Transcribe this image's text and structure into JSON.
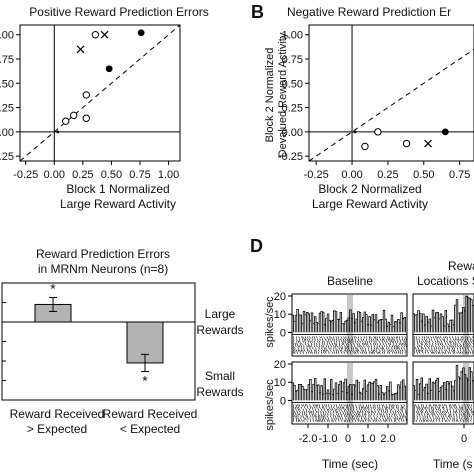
{
  "chart_data": [
    {
      "panel": "A",
      "type": "scatter",
      "title": "Positive Reward Prediction Errors",
      "xlabel": "Block 1 Normalized",
      "xlabel2": "Large Reward Activity",
      "xlim": [
        -0.3,
        1.1
      ],
      "ylim": [
        -0.3,
        1.1
      ],
      "xticks": [
        "-0.25",
        "0.00",
        "0.25",
        "0.50",
        "0.75",
        "1.00"
      ],
      "yticks": [
        "-0.25",
        "0.00",
        "0.25",
        "0.50",
        "0.75",
        "1.00"
      ],
      "diagonal": true,
      "points": [
        {
          "x": 0.03,
          "y": 0.0,
          "m": "dot"
        },
        {
          "x": 0.1,
          "y": 0.11,
          "m": "open"
        },
        {
          "x": 0.17,
          "y": 0.17,
          "m": "open"
        },
        {
          "x": 0.28,
          "y": 0.14,
          "m": "open"
        },
        {
          "x": 0.28,
          "y": 0.38,
          "m": "open"
        },
        {
          "x": 0.23,
          "y": 0.85,
          "m": "x"
        },
        {
          "x": 0.48,
          "y": 0.65,
          "m": "filled"
        },
        {
          "x": 0.36,
          "y": 1.0,
          "m": "open"
        },
        {
          "x": 0.44,
          "y": 1.0,
          "m": "x"
        },
        {
          "x": 0.76,
          "y": 1.02,
          "m": "filled"
        }
      ]
    },
    {
      "panel": "B",
      "type": "scatter",
      "title": "Negative Reward Prediction Er",
      "xlabel": "Block 2 Normalized",
      "xlabel2": "Large Reward Activity",
      "ylabel": "Block 2 Normalized",
      "ylabel2": "Devalued Reward Activity",
      "xlim": [
        -0.3,
        0.85
      ],
      "ylim": [
        -0.3,
        1.1
      ],
      "xticks": [
        "-0.25",
        "0.00",
        "0.25",
        "0.50",
        "0.75"
      ],
      "yticks": [
        "-0.25",
        "0.00",
        "0.25",
        "0.50",
        "0.75",
        "1.00"
      ],
      "diagonal": true,
      "points": [
        {
          "x": 0.02,
          "y": 0.0,
          "m": "dot"
        },
        {
          "x": 0.09,
          "y": -0.15,
          "m": "open"
        },
        {
          "x": 0.18,
          "y": 0.0,
          "m": "open"
        },
        {
          "x": 0.38,
          "y": -0.12,
          "m": "open"
        },
        {
          "x": 0.53,
          "y": -0.12,
          "m": "x"
        },
        {
          "x": 0.65,
          "y": 0.0,
          "m": "filled"
        }
      ]
    },
    {
      "panel": "C",
      "type": "bar",
      "title": "Reward Prediction Errors",
      "title2": "in MRNm Neurons (n=8)",
      "categories": [
        "Reward Received",
        "Reward Received"
      ],
      "categories2": [
        "> Expected",
        "< Expected"
      ],
      "values": [
        0.45,
        -1.05
      ],
      "errors": [
        0.18,
        0.22
      ],
      "ylim": [
        -2.0,
        1.0
      ],
      "annotations": [
        "*",
        "*"
      ]
    }
  ],
  "panel_labels": {
    "b": "B",
    "d": "D"
  },
  "raster": {
    "columns": [
      "Baseline",
      "Rewa",
      "Locations S"
    ],
    "rows": [
      "Large",
      "Rewards",
      "Small",
      "Rewards"
    ],
    "ylabel": "spikes/sec",
    "yticks": [
      "20",
      "10",
      "0"
    ],
    "xticks": [
      "-2.0",
      "-1.0",
      "0",
      "1.0",
      "2.0",
      "0"
    ],
    "xlabel": "Time (sec)",
    "xlabel2": "Time (s"
  }
}
